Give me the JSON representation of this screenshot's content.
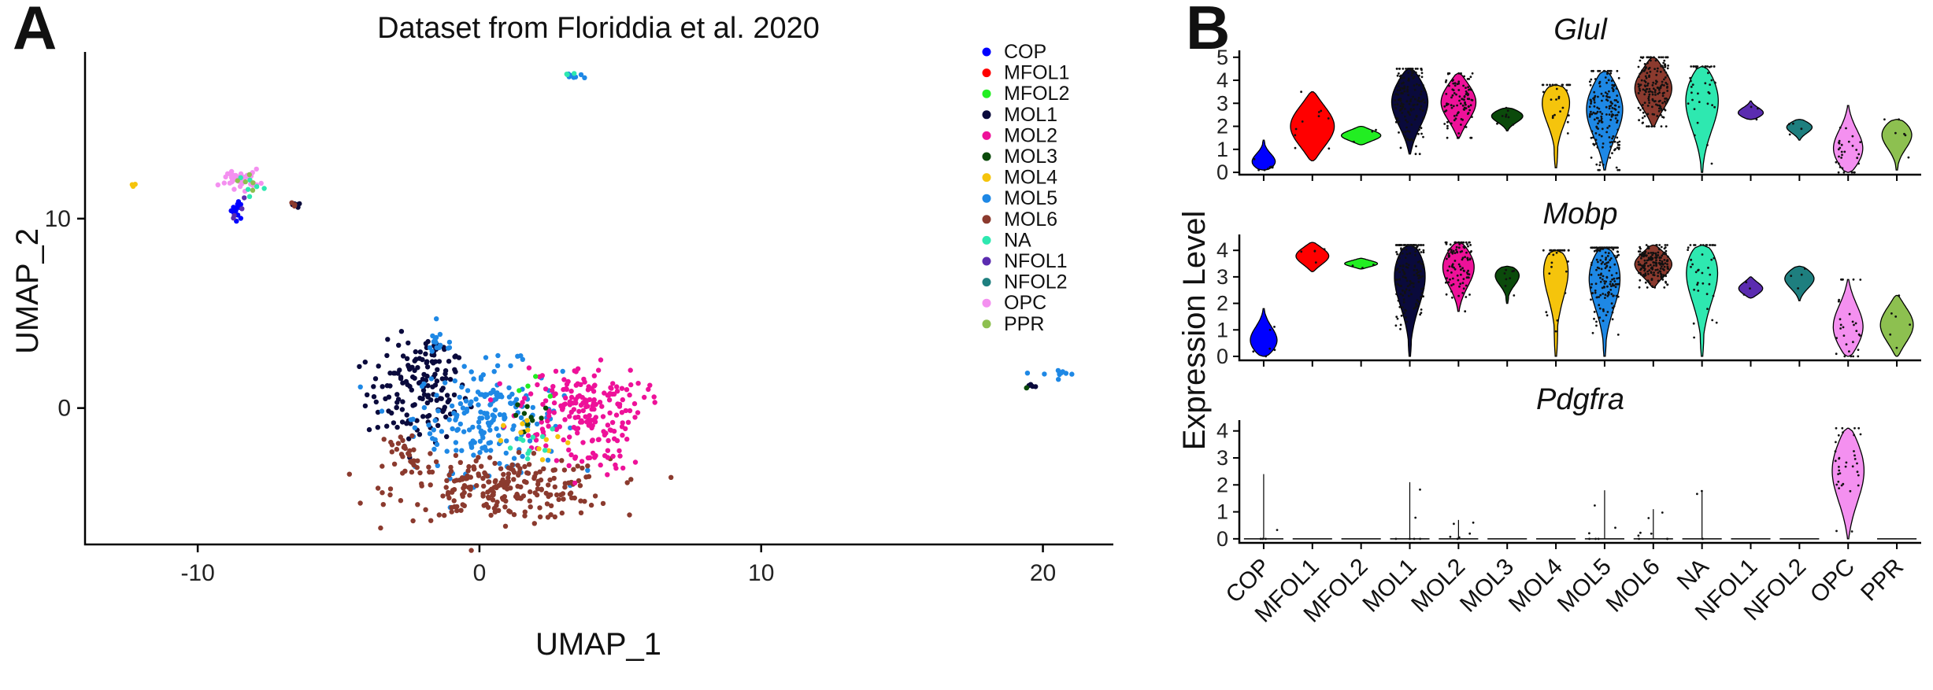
{
  "panels": {
    "a_label": "A",
    "b_label": "B"
  },
  "chart_data": [
    {
      "type": "scatter",
      "title": "Dataset from Floriddia et al. 2020",
      "xlabel": "UMAP_1",
      "ylabel": "UMAP_2",
      "xlim": [
        -14,
        22.5
      ],
      "ylim": [
        -7.2,
        18.8
      ],
      "xticks": [
        -10,
        0,
        10,
        20
      ],
      "yticks": [
        0,
        10
      ],
      "legend_position": "top-right",
      "grid": false,
      "series": [
        {
          "name": "COP",
          "color": "#0000FF"
        },
        {
          "name": "MFOL1",
          "color": "#FF0000"
        },
        {
          "name": "MFOL2",
          "color": "#22EE22"
        },
        {
          "name": "MOL1",
          "color": "#0A0A3C"
        },
        {
          "name": "MOL2",
          "color": "#EE1199"
        },
        {
          "name": "MOL3",
          "color": "#0B4A0B"
        },
        {
          "name": "MOL4",
          "color": "#F5C40C"
        },
        {
          "name": "MOL5",
          "color": "#1E88E5"
        },
        {
          "name": "MOL6",
          "color": "#8B3A2E"
        },
        {
          "name": "NA",
          "color": "#2EE8B0"
        },
        {
          "name": "NFOL1",
          "color": "#5B2CB0"
        },
        {
          "name": "NFOL2",
          "color": "#1E7F7F"
        },
        {
          "name": "OPC",
          "color": "#F490F0"
        },
        {
          "name": "PPR",
          "color": "#8DC050"
        }
      ],
      "clusters": [
        {
          "series": "MOL1",
          "cx": -2.2,
          "cy": 0.8,
          "sx": 0.9,
          "sy": 1.3,
          "n": 140
        },
        {
          "series": "MOL1",
          "cx": -1.6,
          "cy": 3.0,
          "sx": 0.3,
          "sy": 0.5,
          "n": 20
        },
        {
          "series": "MOL5",
          "cx": 0.3,
          "cy": -0.5,
          "sx": 1.3,
          "sy": 1.4,
          "n": 200
        },
        {
          "series": "MOL5",
          "cx": -1.4,
          "cy": 3.4,
          "sx": 0.3,
          "sy": 0.4,
          "n": 15
        },
        {
          "series": "MOL6",
          "cx": 0.8,
          "cy": -4.3,
          "sx": 1.9,
          "sy": 0.8,
          "n": 240
        },
        {
          "series": "MOL6",
          "cx": -2.6,
          "cy": -2.4,
          "sx": 0.5,
          "sy": 0.7,
          "n": 30
        },
        {
          "series": "MOL2",
          "cx": 3.6,
          "cy": 0.2,
          "sx": 1.1,
          "sy": 1.0,
          "n": 170
        },
        {
          "series": "MOL2",
          "cx": 3.8,
          "cy": -2.4,
          "sx": 0.9,
          "sy": 0.7,
          "n": 40
        },
        {
          "series": "MOL3",
          "cx": 1.8,
          "cy": -0.4,
          "sx": 0.4,
          "sy": 0.6,
          "n": 10
        },
        {
          "series": "MOL4",
          "cx": 2.1,
          "cy": -1.8,
          "sx": 0.6,
          "sy": 0.6,
          "n": 12
        },
        {
          "series": "NA",
          "cx": 2.0,
          "cy": -2.2,
          "sx": 0.7,
          "sy": 0.6,
          "n": 10
        },
        {
          "series": "MFOL2",
          "cx": 1.6,
          "cy": 1.0,
          "sx": 0.4,
          "sy": 0.4,
          "n": 4
        },
        {
          "series": "OPC",
          "cx": -8.5,
          "cy": 12.1,
          "sx": 0.35,
          "sy": 0.25,
          "n": 40
        },
        {
          "series": "COP",
          "cx": -8.6,
          "cy": 10.4,
          "sx": 0.12,
          "sy": 0.35,
          "n": 12
        },
        {
          "series": "NA",
          "cx": -8.0,
          "cy": 11.8,
          "sx": 0.25,
          "sy": 0.3,
          "n": 6
        },
        {
          "series": "NFOL1",
          "cx": -8.5,
          "cy": 10.6,
          "sx": 0.15,
          "sy": 0.3,
          "n": 4
        },
        {
          "series": "PPR",
          "cx": -8.2,
          "cy": 11.9,
          "sx": 0.2,
          "sy": 0.25,
          "n": 5
        },
        {
          "series": "MOL1",
          "cx": -6.5,
          "cy": 10.7,
          "sx": 0.12,
          "sy": 0.1,
          "n": 5
        },
        {
          "series": "MOL6",
          "cx": -6.6,
          "cy": 10.8,
          "sx": 0.1,
          "sy": 0.08,
          "n": 3
        },
        {
          "series": "MOL4",
          "cx": -12.3,
          "cy": 11.8,
          "sx": 0.05,
          "sy": 0.05,
          "n": 3
        },
        {
          "series": "MOL5",
          "cx": 3.3,
          "cy": 17.5,
          "sx": 0.2,
          "sy": 0.06,
          "n": 8
        },
        {
          "series": "NA",
          "cx": 3.1,
          "cy": 17.6,
          "sx": 0.1,
          "sy": 0.05,
          "n": 3
        },
        {
          "series": "MOL5",
          "cx": 20.5,
          "cy": 1.8,
          "sx": 0.35,
          "sy": 0.12,
          "n": 10
        },
        {
          "series": "MOL1",
          "cx": 19.6,
          "cy": 1.2,
          "sx": 0.15,
          "sy": 0.08,
          "n": 4
        },
        {
          "series": "MOL3",
          "cx": 19.4,
          "cy": 1.1,
          "sx": 0.08,
          "sy": 0.05,
          "n": 2
        }
      ]
    },
    {
      "type": "violin",
      "ylabel": "Expression Level",
      "categories": [
        "COP",
        "MFOL1",
        "MFOL2",
        "MOL1",
        "MOL2",
        "MOL3",
        "MOL4",
        "MOL5",
        "MOL6",
        "NA",
        "NFOL1",
        "NFOL2",
        "OPC",
        "PPR"
      ],
      "colors": [
        "#0000FF",
        "#FF0000",
        "#22EE22",
        "#0A0A3C",
        "#EE1199",
        "#0B4A0B",
        "#F5C40C",
        "#1E88E5",
        "#8B3A2E",
        "#2EE8B0",
        "#5B2CB0",
        "#1E7F7F",
        "#F490F0",
        "#8DC050"
      ],
      "genes": [
        {
          "name": "Glul",
          "yticks": [
            0,
            1,
            2,
            3,
            4,
            5
          ],
          "ylim": [
            -0.1,
            5.3
          ],
          "violins": [
            {
              "min": 0.1,
              "max": 1.4,
              "mode": 0.35,
              "w": 0.6,
              "pts": 8
            },
            {
              "min": 0.5,
              "max": 3.5,
              "mode": 2.0,
              "w": 1.0,
              "pts": 10
            },
            {
              "min": 1.2,
              "max": 2.0,
              "mode": 1.6,
              "w": 0.9,
              "pts": 3
            },
            {
              "min": 0.8,
              "max": 4.5,
              "mode": 3.2,
              "w": 0.85,
              "pts": 150
            },
            {
              "min": 1.5,
              "max": 4.3,
              "mode": 3.1,
              "w": 0.8,
              "pts": 100
            },
            {
              "min": 1.8,
              "max": 2.8,
              "mode": 2.5,
              "w": 0.75,
              "pts": 8
            },
            {
              "min": 0.2,
              "max": 3.8,
              "mode": 3.5,
              "w": 0.8,
              "pts": 30
            },
            {
              "min": 0.1,
              "max": 4.4,
              "mode": 2.9,
              "w": 0.85,
              "pts": 170
            },
            {
              "min": 2.0,
              "max": 5.0,
              "mode": 3.7,
              "w": 0.85,
              "pts": 170
            },
            {
              "min": 0.0,
              "max": 4.6,
              "mode": 3.4,
              "w": 0.8,
              "pts": 40
            },
            {
              "min": 2.3,
              "max": 3.1,
              "mode": 2.55,
              "w": 0.6,
              "pts": 3
            },
            {
              "min": 1.4,
              "max": 2.3,
              "mode": 2.0,
              "w": 0.6,
              "pts": 4
            },
            {
              "min": 0.0,
              "max": 2.9,
              "mode": 0.9,
              "w": 0.7,
              "pts": 30
            },
            {
              "min": 0.1,
              "max": 2.3,
              "mode": 1.8,
              "w": 0.75,
              "pts": 6
            }
          ]
        },
        {
          "name": "Mobp",
          "yticks": [
            0,
            1,
            2,
            3,
            4
          ],
          "ylim": [
            -0.15,
            4.6
          ],
          "violins": [
            {
              "min": 0.0,
              "max": 1.8,
              "mode": 0.5,
              "w": 0.65,
              "pts": 6
            },
            {
              "min": 3.2,
              "max": 4.3,
              "mode": 3.8,
              "w": 0.75,
              "pts": 5
            },
            {
              "min": 3.3,
              "max": 3.7,
              "mode": 3.5,
              "w": 0.75,
              "pts": 3
            },
            {
              "min": 0.0,
              "max": 4.2,
              "mode": 3.4,
              "w": 0.8,
              "pts": 150
            },
            {
              "min": 1.7,
              "max": 4.3,
              "mode": 3.5,
              "w": 0.75,
              "pts": 100
            },
            {
              "min": 2.0,
              "max": 3.4,
              "mode": 3.2,
              "w": 0.65,
              "pts": 8
            },
            {
              "min": 0.0,
              "max": 4.0,
              "mode": 3.8,
              "w": 0.75,
              "pts": 30
            },
            {
              "min": 0.0,
              "max": 4.1,
              "mode": 3.3,
              "w": 0.8,
              "pts": 170
            },
            {
              "min": 2.6,
              "max": 4.2,
              "mode": 3.5,
              "w": 0.85,
              "pts": 170
            },
            {
              "min": 0.0,
              "max": 4.2,
              "mode": 3.6,
              "w": 0.85,
              "pts": 40
            },
            {
              "min": 2.2,
              "max": 3.0,
              "mode": 2.55,
              "w": 0.55,
              "pts": 3
            },
            {
              "min": 2.1,
              "max": 3.4,
              "mode": 3.0,
              "w": 0.7,
              "pts": 4
            },
            {
              "min": 0.0,
              "max": 2.9,
              "mode": 1.0,
              "w": 0.7,
              "pts": 30
            },
            {
              "min": 0.0,
              "max": 2.3,
              "mode": 1.2,
              "w": 0.75,
              "pts": 6
            }
          ]
        },
        {
          "name": "Pdgfra",
          "yticks": [
            0,
            1,
            2,
            3,
            4
          ],
          "ylim": [
            -0.15,
            4.4
          ],
          "violins": [
            {
              "min": 0.0,
              "max": 2.4,
              "mode": 0.0,
              "w": 0.9,
              "pts": 4,
              "flat": true
            },
            {
              "min": 0.0,
              "max": 0.06,
              "mode": 0.0,
              "w": 0.9,
              "pts": 0,
              "flat": true
            },
            {
              "min": 0.0,
              "max": 0.06,
              "mode": 0.0,
              "w": 0.9,
              "pts": 0,
              "flat": true
            },
            {
              "min": 0.0,
              "max": 2.1,
              "mode": 0.0,
              "w": 0.9,
              "pts": 6,
              "flat": true
            },
            {
              "min": 0.0,
              "max": 0.7,
              "mode": 0.0,
              "w": 0.9,
              "pts": 6,
              "flat": true
            },
            {
              "min": 0.0,
              "max": 0.06,
              "mode": 0.0,
              "w": 0.9,
              "pts": 0,
              "flat": true
            },
            {
              "min": 0.0,
              "max": 0.06,
              "mode": 0.0,
              "w": 0.9,
              "pts": 0,
              "flat": true
            },
            {
              "min": 0.0,
              "max": 1.8,
              "mode": 0.0,
              "w": 0.9,
              "pts": 6,
              "flat": true
            },
            {
              "min": 0.0,
              "max": 1.1,
              "mode": 0.0,
              "w": 0.9,
              "pts": 8,
              "flat": true
            },
            {
              "min": 0.0,
              "max": 1.8,
              "mode": 0.0,
              "w": 0.9,
              "pts": 3,
              "flat": true
            },
            {
              "min": 0.0,
              "max": 0.06,
              "mode": 0.0,
              "w": 0.9,
              "pts": 0,
              "flat": true
            },
            {
              "min": 0.0,
              "max": 0.06,
              "mode": 0.0,
              "w": 0.9,
              "pts": 0,
              "flat": true
            },
            {
              "min": 0.0,
              "max": 4.1,
              "mode": 2.7,
              "w": 0.75,
              "pts": 35
            },
            {
              "min": 0.0,
              "max": 0.06,
              "mode": 0.0,
              "w": 0.9,
              "pts": 0,
              "flat": true
            }
          ]
        }
      ]
    }
  ]
}
